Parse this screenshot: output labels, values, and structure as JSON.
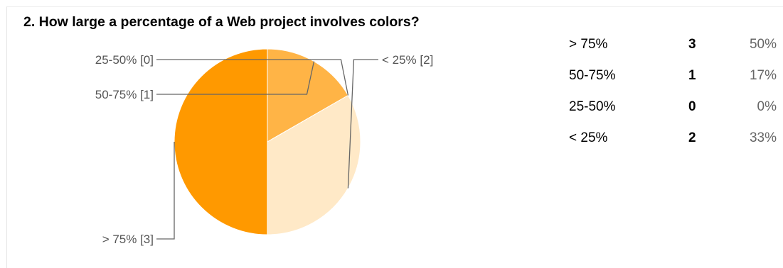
{
  "question": "2. How large a percentage of a Web project involves colors?",
  "chart_data": {
    "type": "pie",
    "categories": [
      "> 75%",
      "50-75%",
      "25-50%",
      "< 25%"
    ],
    "values": [
      3,
      1,
      0,
      2
    ],
    "slice_labels": [
      "> 75% [3]",
      "50-75% [1]",
      "25-50% [0]",
      "< 25% [2]"
    ],
    "colors": [
      "#ff9900",
      "#ffb446",
      "#ffcf87",
      "#ffe9c7"
    ]
  },
  "summary": [
    {
      "label": "> 75%",
      "count": "3",
      "percent": "50%"
    },
    {
      "label": "50-75%",
      "count": "1",
      "percent": "17%"
    },
    {
      "label": "25-50%",
      "count": "0",
      "percent": "0%"
    },
    {
      "label": "< 25%",
      "count": "2",
      "percent": "33%"
    }
  ]
}
